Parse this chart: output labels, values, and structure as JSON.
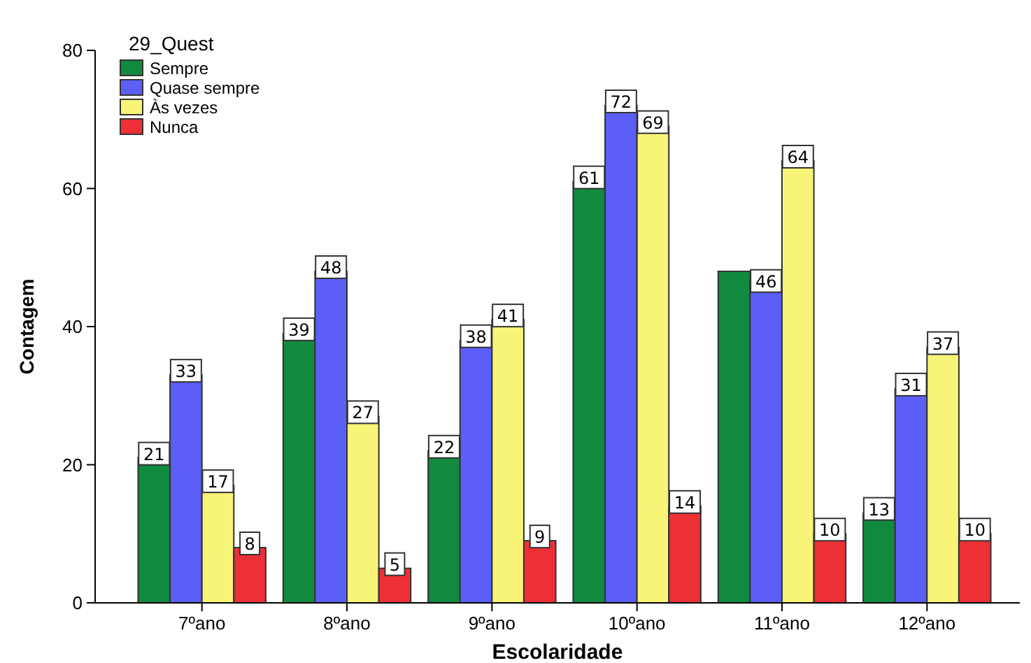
{
  "chart_data": {
    "type": "bar",
    "xlabel": "Escolaridade",
    "ylabel": "Contagem",
    "legend_title": "29_Quest",
    "legend": "top left",
    "grid": false,
    "categories": [
      "7ºano",
      "8ºano",
      "9ºano",
      "10ºano",
      "11ºano",
      "12ºano"
    ],
    "ylim": [
      0,
      80
    ],
    "yticks": [
      0,
      20,
      40,
      60,
      80
    ],
    "series": [
      {
        "name": "Sempre",
        "color": "#118a3f",
        "values": [
          21,
          39,
          22,
          61,
          48,
          13
        ],
        "value_labels": [
          "21",
          "39",
          "22",
          "61",
          null,
          "13"
        ]
      },
      {
        "name": "Quase sempre",
        "color": "#5b5ff7",
        "values": [
          33,
          48,
          38,
          72,
          46,
          31
        ],
        "value_labels": [
          "33",
          "48",
          "38",
          "72",
          "46",
          "31"
        ]
      },
      {
        "name": "Às vezes",
        "color": "#f8f477",
        "values": [
          17,
          27,
          41,
          69,
          64,
          37
        ],
        "value_labels": [
          "17",
          "27",
          "41",
          "69",
          "64",
          "37"
        ]
      },
      {
        "name": "Nunca",
        "color": "#ec3036",
        "values": [
          8,
          5,
          9,
          14,
          10,
          10
        ],
        "value_labels": [
          "8",
          "5",
          "9",
          "14",
          "10",
          "10"
        ]
      }
    ]
  }
}
